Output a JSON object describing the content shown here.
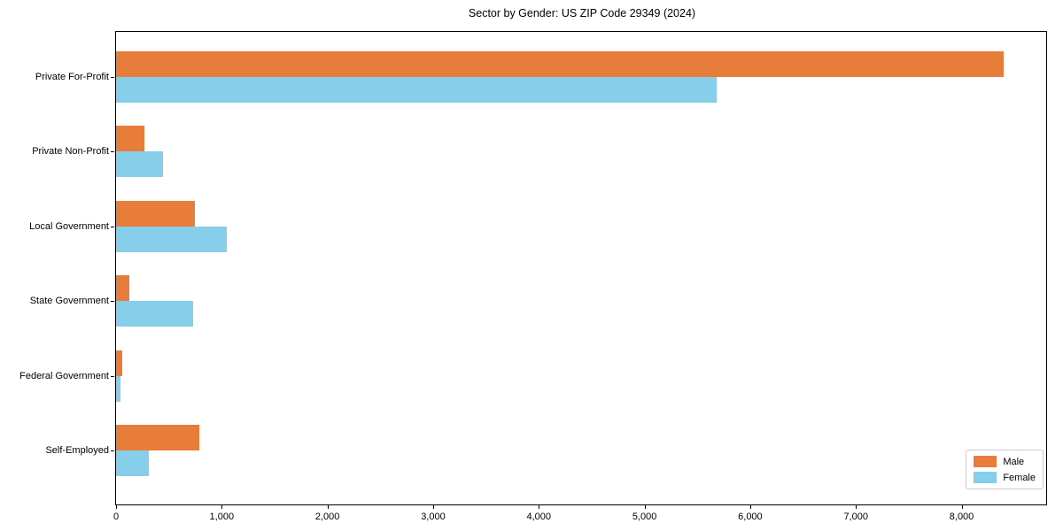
{
  "chart_data": {
    "type": "bar",
    "orientation": "horizontal",
    "title": "Sector by Gender: US ZIP Code 29349 (2024)",
    "categories": [
      "Private For-Profit",
      "Private Non-Profit",
      "Local Government",
      "State Government",
      "Federal Government",
      "Self-Employed"
    ],
    "series": [
      {
        "name": "Male",
        "color": "#e87d3b",
        "values": [
          8400,
          270,
          745,
          125,
          60,
          790
        ]
      },
      {
        "name": "Female",
        "color": "#87ceeb",
        "values": [
          5680,
          445,
          1045,
          730,
          40,
          310
        ]
      }
    ],
    "xlabel": "",
    "ylabel": "",
    "xlim": [
      0,
      8800
    ],
    "xticks": [
      0,
      1000,
      2000,
      3000,
      4000,
      5000,
      6000,
      7000,
      8000
    ],
    "xtick_labels": [
      "0",
      "1,000",
      "2,000",
      "3,000",
      "4,000",
      "5,000",
      "6,000",
      "7,000",
      "8,000"
    ],
    "legend": {
      "position": "lower right",
      "entries": [
        "Male",
        "Female"
      ]
    },
    "grid": false,
    "axis_color": "#000000",
    "background_color": "#ffffff"
  }
}
